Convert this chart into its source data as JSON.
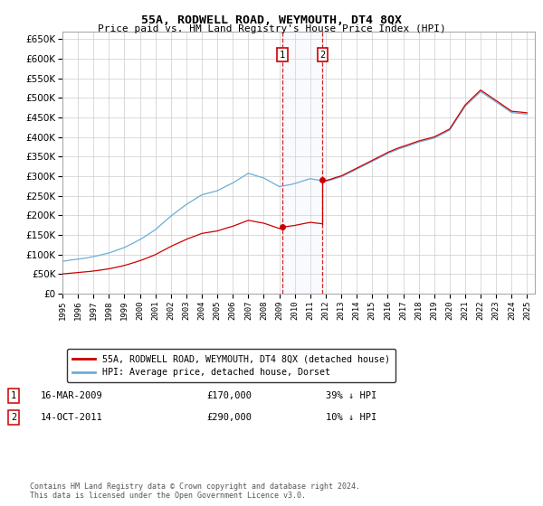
{
  "title": "55A, RODWELL ROAD, WEYMOUTH, DT4 8QX",
  "subtitle": "Price paid vs. HM Land Registry's House Price Index (HPI)",
  "legend_entry1": "55A, RODWELL ROAD, WEYMOUTH, DT4 8QX (detached house)",
  "legend_entry2": "HPI: Average price, detached house, Dorset",
  "transaction1_date": "16-MAR-2009",
  "transaction1_price": "£170,000",
  "transaction1_hpi": "39% ↓ HPI",
  "transaction2_date": "14-OCT-2011",
  "transaction2_price": "£290,000",
  "transaction2_hpi": "10% ↓ HPI",
  "footnote": "Contains HM Land Registry data © Crown copyright and database right 2024.\nThis data is licensed under the Open Government Licence v3.0.",
  "hpi_color": "#6baed6",
  "price_color": "#cc0000",
  "marker1_x": 2009.21,
  "marker2_x": 2011.79,
  "transaction1_y": 170000,
  "transaction2_y": 290000,
  "ylim": [
    0,
    670000
  ],
  "xlim_start": 1995.0,
  "xlim_end": 2025.5,
  "background_color": "#ffffff",
  "grid_color": "#cccccc",
  "shade_color": "#dbe8f5"
}
